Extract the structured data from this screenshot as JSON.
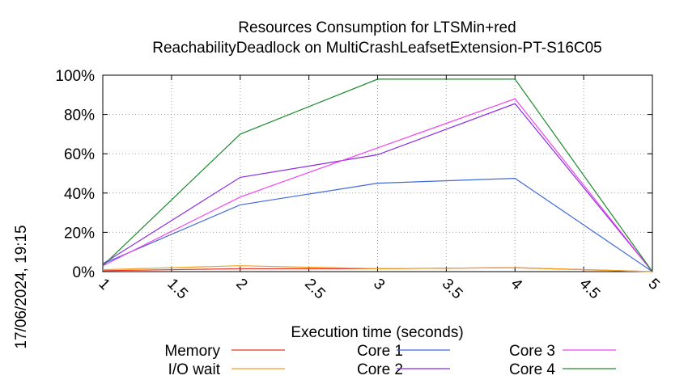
{
  "page": {
    "title_line1": "Resources Consumption for LTSMin+red",
    "title_line2": "ReachabilityDeadlock on MultiCrashLeafsetExtension-PT-S16C05",
    "timestamp": "17/06/2024, 19:15"
  },
  "chart_data": {
    "type": "line",
    "title": "Resources Consumption for LTSMin+red ReachabilityDeadlock on MultiCrashLeafsetExtension-PT-S16C05",
    "xlabel": "Execution time (seconds)",
    "ylabel": "",
    "x": [
      1,
      2,
      3,
      4,
      5
    ],
    "xlim": [
      1,
      5
    ],
    "ylim": [
      0,
      100
    ],
    "x_ticks": [
      "1",
      "1.5",
      "2",
      "2.5",
      "3",
      "3.5",
      "4",
      "4.5",
      "5"
    ],
    "y_ticks": [
      "0%",
      "20%",
      "40%",
      "60%",
      "80%",
      "100%"
    ],
    "grid": true,
    "legend_position": "bottom",
    "series": [
      {
        "name": "Memory",
        "color": "#e8372a",
        "values": [
          0.5,
          1.5,
          1.5,
          2,
          0
        ]
      },
      {
        "name": "I/O wait",
        "color": "#f0a020",
        "values": [
          1,
          3,
          1.5,
          2,
          0
        ]
      },
      {
        "name": "Core 1",
        "color": "#4169d9",
        "values": [
          4,
          34,
          45,
          47.5,
          0
        ]
      },
      {
        "name": "Core 2",
        "color": "#8a2be2",
        "values": [
          4,
          48,
          59.5,
          85.5,
          0
        ]
      },
      {
        "name": "Core 3",
        "color": "#ee44ee",
        "values": [
          3,
          38,
          63,
          88,
          0
        ]
      },
      {
        "name": "Core 4",
        "color": "#1a8a2a",
        "values": [
          3,
          70,
          98,
          98,
          0
        ]
      }
    ]
  }
}
